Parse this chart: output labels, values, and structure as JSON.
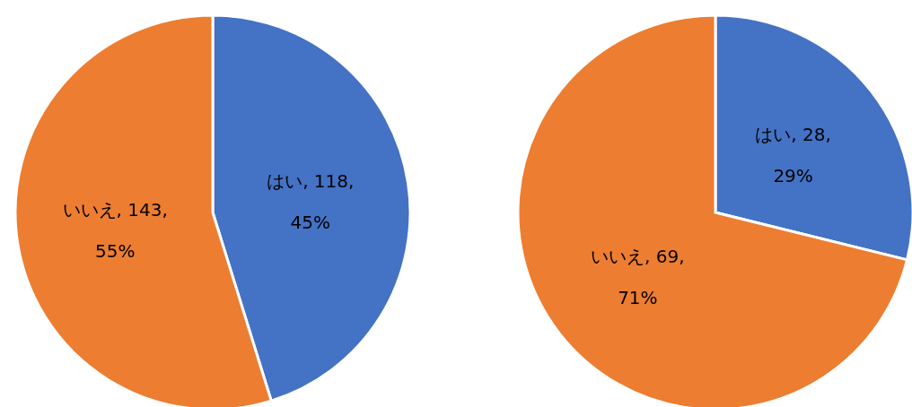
{
  "chart_data": [
    {
      "type": "pie",
      "categories": [
        "はい",
        "いいえ"
      ],
      "values": [
        118,
        143
      ],
      "colors": [
        "#4472c4",
        "#ed7d31"
      ],
      "value_labels": [
        "118, 45%",
        "143, 55%"
      ]
    },
    {
      "type": "pie",
      "categories": [
        "はい",
        "いいえ"
      ],
      "values": [
        28,
        69
      ],
      "colors": [
        "#4472c4",
        "#ed7d31"
      ],
      "value_labels": [
        "28, 29%",
        "69, 71%"
      ]
    }
  ]
}
